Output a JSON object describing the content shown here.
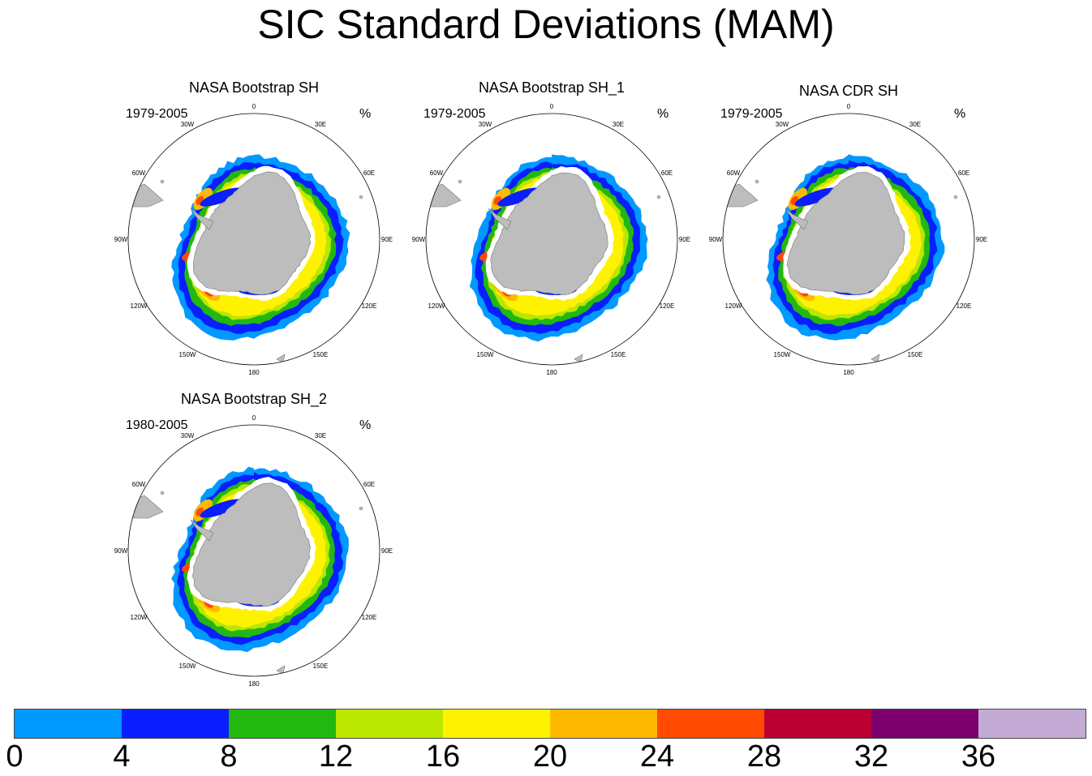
{
  "title": "SIC Standard Deviations (MAM)",
  "units": "%",
  "chart_data": {
    "type": "heatmap",
    "projection": "South polar stereographic",
    "variable": "Sea ice concentration standard deviation",
    "season": "MAM",
    "units": "%",
    "panels": [
      {
        "title": "NASA Bootstrap SH",
        "period": "1979-2005"
      },
      {
        "title": "NASA Bootstrap SH_1",
        "period": "1979-2005"
      },
      {
        "title": "NASA CDR SH",
        "period": "1979-2005"
      },
      {
        "title": "NASA Bootstrap SH_2",
        "period": "1980-2005"
      }
    ],
    "longitude_labels": [
      "0",
      "30E",
      "60E",
      "90E",
      "120E",
      "150E",
      "180",
      "150W",
      "120W",
      "90W",
      "60W",
      "30W"
    ],
    "colorbar": {
      "levels": [
        0,
        4,
        8,
        12,
        16,
        20,
        24,
        28,
        32,
        36
      ],
      "tick_labels": [
        "0",
        "4",
        "8",
        "12",
        "16",
        "20",
        "24",
        "28",
        "32",
        "36"
      ],
      "colors": [
        "#0099ff",
        "#0a1eff",
        "#22b810",
        "#bbe600",
        "#fff200",
        "#ffb900",
        "#ff4a00",
        "#ba0032",
        "#7e006e",
        "#c3abd6"
      ]
    }
  }
}
